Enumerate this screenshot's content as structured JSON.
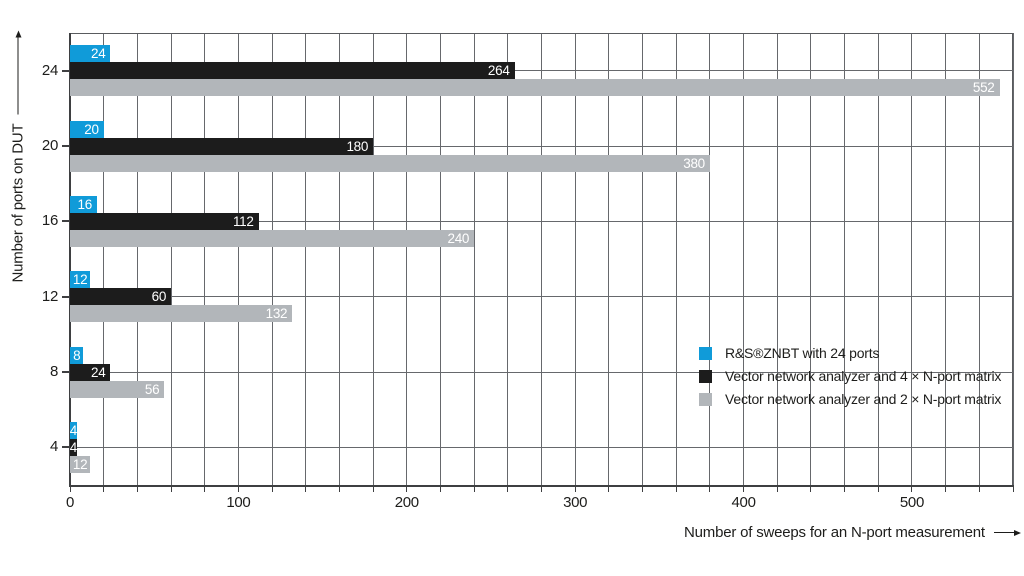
{
  "chart_data": {
    "type": "bar",
    "orientation": "horizontal",
    "title": "",
    "xlabel": "Number of sweeps for an N-port measurement",
    "ylabel": "Number of ports on DUT",
    "categories": [
      24,
      20,
      16,
      12,
      8,
      4
    ],
    "series": [
      {
        "name": "R&S®ZNBT with 24 ports",
        "color": "#109bd9",
        "values": [
          24,
          20,
          16,
          12,
          8,
          4
        ]
      },
      {
        "name": "Vector network analyzer and 4 × N-port matrix",
        "color": "#1c1c1c",
        "values": [
          264,
          180,
          112,
          60,
          24,
          4
        ]
      },
      {
        "name": "Vector network analyzer and 2 × N-port matrix",
        "color": "#b2b6ba",
        "values": [
          552,
          380,
          240,
          132,
          56,
          12
        ]
      }
    ],
    "xlim": [
      0,
      560
    ],
    "x_major_ticks": [
      0,
      100,
      200,
      300,
      400,
      500
    ],
    "x_minor_step": 20,
    "grid": true,
    "value_labels": true,
    "legend_position": "middle-right"
  },
  "colors": {
    "background": "#ffffff",
    "grid": "#66686c",
    "axis": "#3e3f41",
    "text": "#1d1d1b",
    "value_label": "#ffffff"
  }
}
